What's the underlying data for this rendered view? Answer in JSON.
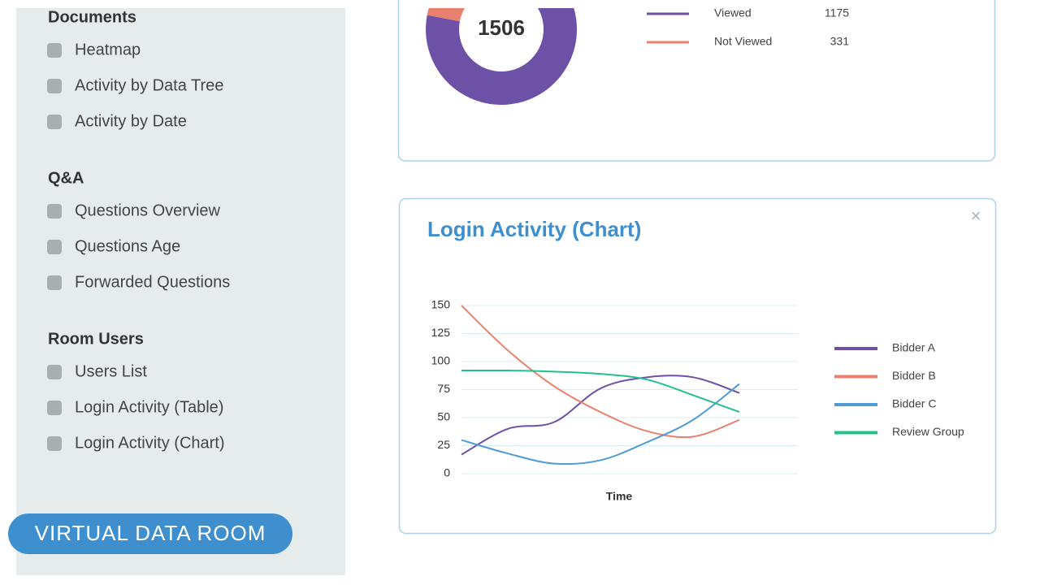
{
  "sidebar": {
    "sections": [
      {
        "title": "Documents",
        "items": [
          "Heatmap",
          "Activity by Data Tree",
          "Activity by Date"
        ]
      },
      {
        "title": "Q&A",
        "items": [
          "Questions Overview",
          "Questions Age",
          "Forwarded Questions"
        ]
      },
      {
        "title": "Room Users",
        "items": [
          "Users List",
          "Login Activity (Table)",
          "Login Activity (Chart)"
        ]
      }
    ]
  },
  "badge": "VIRTUAL DATA ROOM",
  "close": "×",
  "chart_data": [
    {
      "type": "pie",
      "total": 1506,
      "categories": [
        "Viewed",
        "Not Viewed"
      ],
      "values": [
        1175,
        331
      ],
      "colors": [
        "#6d51a6",
        "#e8826f"
      ]
    },
    {
      "type": "line",
      "title": "Login Activity (Chart)",
      "x_label": "Time",
      "categories": [
        null,
        null,
        null,
        null,
        null,
        null,
        null
      ],
      "series": [
        {
          "name": "Bidder A",
          "color": "#6d51a6",
          "values": [
            17,
            40,
            46,
            76,
            86,
            86,
            72
          ]
        },
        {
          "name": "Bidder B",
          "color": "#e8826f",
          "values": [
            150,
            110,
            78,
            55,
            38,
            33,
            48
          ]
        },
        {
          "name": "Bidder C",
          "color": "#4f9bd3",
          "values": [
            30,
            18,
            9,
            12,
            28,
            48,
            80
          ]
        },
        {
          "name": "Review Group",
          "color": "#22c08f",
          "values": [
            92,
            92,
            91,
            89,
            84,
            70,
            55
          ]
        }
      ],
      "ylim": [
        0,
        150
      ],
      "yticks": [
        0,
        25,
        50,
        75,
        100,
        125,
        150
      ],
      "grid": true
    }
  ]
}
